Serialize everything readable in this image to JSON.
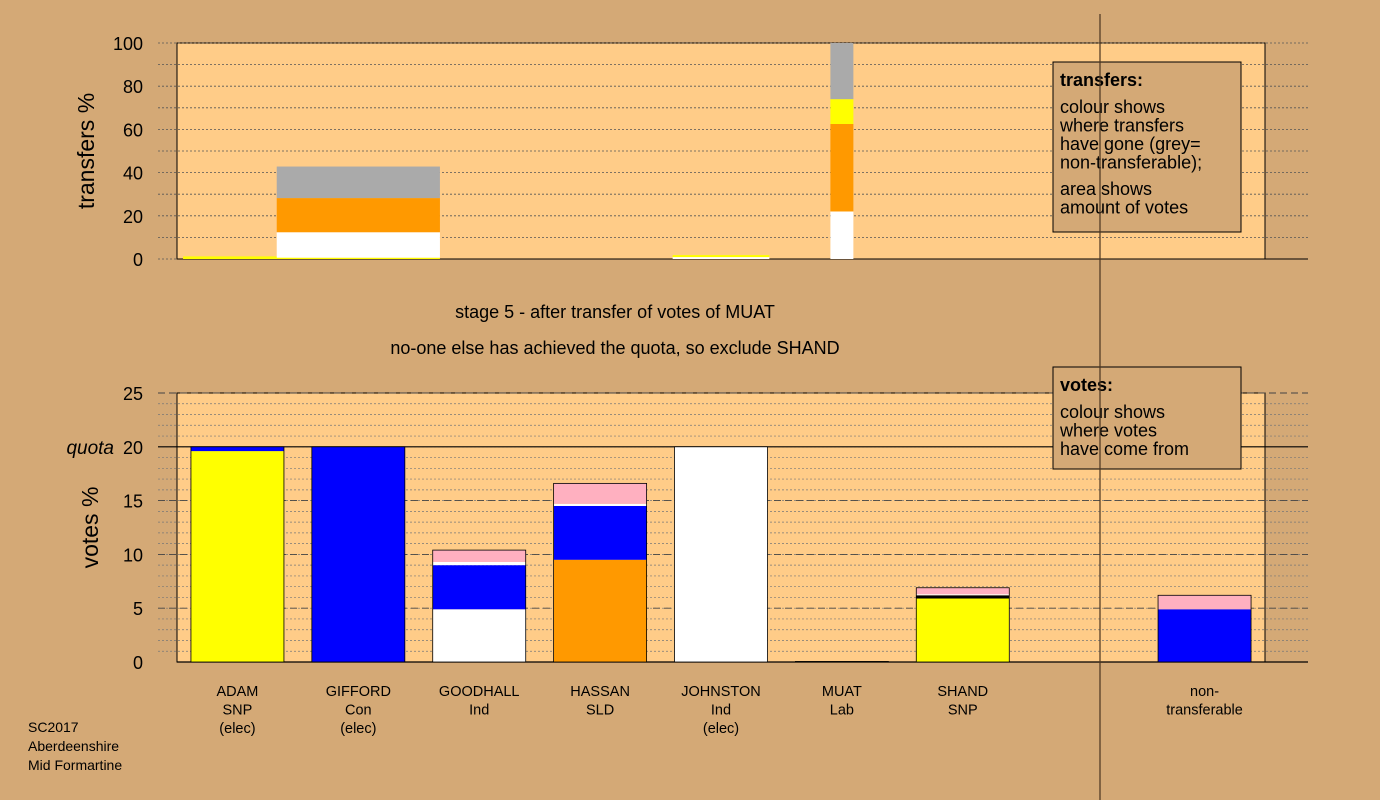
{
  "chart_data": [
    {
      "type": "bar",
      "stacked": true,
      "ylabel": "transfers %",
      "ylim": [
        0,
        100
      ],
      "yticks": [
        0,
        20,
        40,
        60,
        80,
        100
      ],
      "grid": true,
      "legend": {
        "placement": "top-right",
        "title": "transfers:",
        "lines_a": [
          "colour shows",
          "where transfers",
          "have gone (grey=",
          "non-transferable);"
        ],
        "lines_b": [
          "area shows",
          "amount of votes"
        ]
      },
      "bars": [
        {
          "candidate": "ADAM",
          "width": 0.9,
          "segments": [
            {
              "color": "#ffff00",
              "value": 1.2
            }
          ]
        },
        {
          "candidate": "GIFFORD",
          "width": 1.35,
          "segments": [
            {
              "color": "#ffff00",
              "value": 0.6
            },
            {
              "color": "#ffffff",
              "value": 11.8
            },
            {
              "color": "#ff9900",
              "value": 15.8
            },
            {
              "color": "#aaaaaa",
              "value": 14.6
            }
          ]
        },
        {
          "candidate": "JOHNSTON",
          "width": 0.8,
          "segments": [
            {
              "color": "#ffffff",
              "value": 0.9
            },
            {
              "color": "#ffff00",
              "value": 0.9
            }
          ]
        },
        {
          "candidate": "MUAT",
          "width": 0.19,
          "segments": [
            {
              "color": "#ffffff",
              "value": 22.0
            },
            {
              "color": "#ff9900",
              "value": 40.5
            },
            {
              "color": "#ffff00",
              "value": 11.5
            },
            {
              "color": "#aaaaaa",
              "value": 26.0
            }
          ]
        }
      ]
    },
    {
      "type": "bar",
      "stacked": true,
      "ylabel": "votes %",
      "ylim": [
        0,
        25
      ],
      "yticks": [
        0,
        5,
        10,
        15,
        20,
        25
      ],
      "quota": {
        "value": 20,
        "label": "quota"
      },
      "grid": true,
      "legend": {
        "placement": "top-right",
        "title": "votes:",
        "lines": [
          "colour shows",
          "where votes",
          "have come from"
        ]
      },
      "categories": [
        {
          "lines": [
            "ADAM",
            "SNP",
            "(elec)"
          ]
        },
        {
          "lines": [
            "GIFFORD",
            "Con",
            "(elec)"
          ]
        },
        {
          "lines": [
            "GOODHALL",
            "Ind"
          ]
        },
        {
          "lines": [
            "HASSAN",
            "SLD"
          ]
        },
        {
          "lines": [
            "JOHNSTON",
            "Ind",
            "(elec)"
          ]
        },
        {
          "lines": [
            "MUAT",
            "Lab"
          ]
        },
        {
          "lines": [
            "SHAND",
            "SNP"
          ]
        },
        {
          "lines": []
        },
        {
          "lines": [
            "non-",
            "transferable"
          ]
        }
      ],
      "series": [
        {
          "segments": [
            {
              "color": "#ffff00",
              "value": 19.6
            },
            {
              "color": "#0000ff",
              "value": 0.4
            }
          ]
        },
        {
          "segments": [
            {
              "color": "#0000ff",
              "value": 20.0
            }
          ]
        },
        {
          "segments": [
            {
              "color": "#ffffff",
              "value": 4.9
            },
            {
              "color": "#0000ff",
              "value": 4.1
            },
            {
              "color": "#ffffff",
              "value": 0.3
            },
            {
              "color": "#ffb0c0",
              "value": 1.1
            }
          ]
        },
        {
          "segments": [
            {
              "color": "#ff9900",
              "value": 9.5
            },
            {
              "color": "#0000ff",
              "value": 5.0
            },
            {
              "color": "#ffffff",
              "value": 0.2
            },
            {
              "color": "#ffb0c0",
              "value": 1.9
            }
          ]
        },
        {
          "segments": [
            {
              "color": "#ffffff",
              "value": 20.0
            }
          ]
        },
        {
          "segments": [
            {
              "color": "#aaaaaa",
              "value": 0.05
            }
          ]
        },
        {
          "segments": [
            {
              "color": "#ffff00",
              "value": 5.9
            },
            {
              "color": "#000000",
              "value": 0.3
            },
            {
              "color": "#ffffff",
              "value": 0.1
            },
            {
              "color": "#ffb0c0",
              "value": 0.6
            }
          ]
        },
        {
          "segments": []
        },
        {
          "segments": [
            {
              "color": "#0000ff",
              "value": 4.9
            },
            {
              "color": "#ffb0c0",
              "value": 1.3
            }
          ]
        }
      ]
    }
  ],
  "stage_caption": "stage 5 - after transfer of votes of MUAT",
  "stage_note": "no-one else has achieved the quota, so exclude SHAND",
  "footer": {
    "election": "SC2017",
    "council": "Aberdeenshire",
    "ward": "Mid Formartine"
  },
  "colors": {
    "background": "#d4a976",
    "plot_fill": "#ffcc88",
    "SNP": "#ffff00",
    "Con": "#0000ff",
    "Ind": "#ffffff",
    "SLD": "#ff9900",
    "Lab": "#ffb0c0",
    "non_transferable": "#aaaaaa"
  }
}
